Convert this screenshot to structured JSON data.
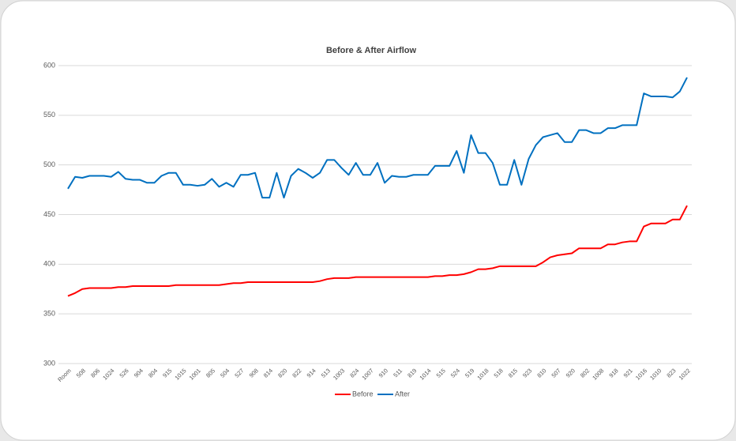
{
  "chart_data": {
    "type": "line",
    "title": "Before & After Airflow",
    "categories": [
      "Room",
      null,
      "508",
      null,
      "806",
      null,
      "1024",
      null,
      "526",
      null,
      "904",
      null,
      "804",
      null,
      "915",
      null,
      "1015",
      null,
      "1001",
      null,
      "805",
      null,
      "504",
      null,
      "527",
      null,
      "908",
      null,
      "814",
      null,
      "820",
      null,
      "822",
      null,
      "914",
      null,
      "513",
      null,
      "1003",
      null,
      "824",
      null,
      "1007",
      null,
      "910",
      null,
      "511",
      null,
      "819",
      null,
      "1014",
      null,
      "515",
      null,
      "524",
      null,
      "519",
      null,
      "1018",
      null,
      "518",
      null,
      "815",
      null,
      "923",
      null,
      "810",
      null,
      "507",
      null,
      "920",
      null,
      "802",
      null,
      "1008",
      null,
      "918",
      null,
      "921",
      null,
      "1016",
      null,
      "1010",
      null,
      "823",
      null,
      "1022"
    ],
    "series": [
      {
        "name": "Before",
        "color": "#ff0000",
        "values": [
          368,
          371,
          375,
          376,
          376,
          376,
          376,
          377,
          377,
          378,
          378,
          378,
          378,
          378,
          378,
          379,
          379,
          379,
          379,
          379,
          379,
          379,
          380,
          381,
          381,
          382,
          382,
          382,
          382,
          382,
          382,
          382,
          382,
          382,
          382,
          383,
          385,
          386,
          386,
          386,
          387,
          387,
          387,
          387,
          387,
          387,
          387,
          387,
          387,
          387,
          387,
          388,
          388,
          389,
          389,
          390,
          392,
          395,
          395,
          396,
          398,
          398,
          398,
          398,
          398,
          398,
          402,
          407,
          409,
          410,
          411,
          416,
          416,
          416,
          416,
          420,
          420,
          422,
          423,
          423,
          438,
          441,
          441,
          441,
          445,
          445,
          459
        ]
      },
      {
        "name": "After",
        "color": "#0070c0",
        "values": [
          476,
          488,
          487,
          489,
          489,
          489,
          488,
          493,
          486,
          485,
          485,
          482,
          482,
          489,
          492,
          492,
          480,
          480,
          479,
          480,
          486,
          478,
          482,
          478,
          490,
          490,
          492,
          467,
          467,
          492,
          467,
          489,
          496,
          492,
          487,
          492,
          505,
          505,
          497,
          490,
          502,
          490,
          490,
          502,
          482,
          489,
          488,
          488,
          490,
          490,
          490,
          499,
          499,
          499,
          514,
          492,
          530,
          512,
          512,
          502,
          480,
          480,
          505,
          480,
          506,
          520,
          528,
          530,
          532,
          523,
          523,
          535,
          535,
          532,
          532,
          537,
          537,
          540,
          540,
          540,
          572,
          569,
          569,
          569,
          568,
          574,
          588
        ]
      }
    ],
    "ylim": [
      300,
      600
    ],
    "yticks": [
      300,
      350,
      400,
      450,
      500,
      550,
      600
    ],
    "grid": true,
    "legend": "bottom"
  }
}
